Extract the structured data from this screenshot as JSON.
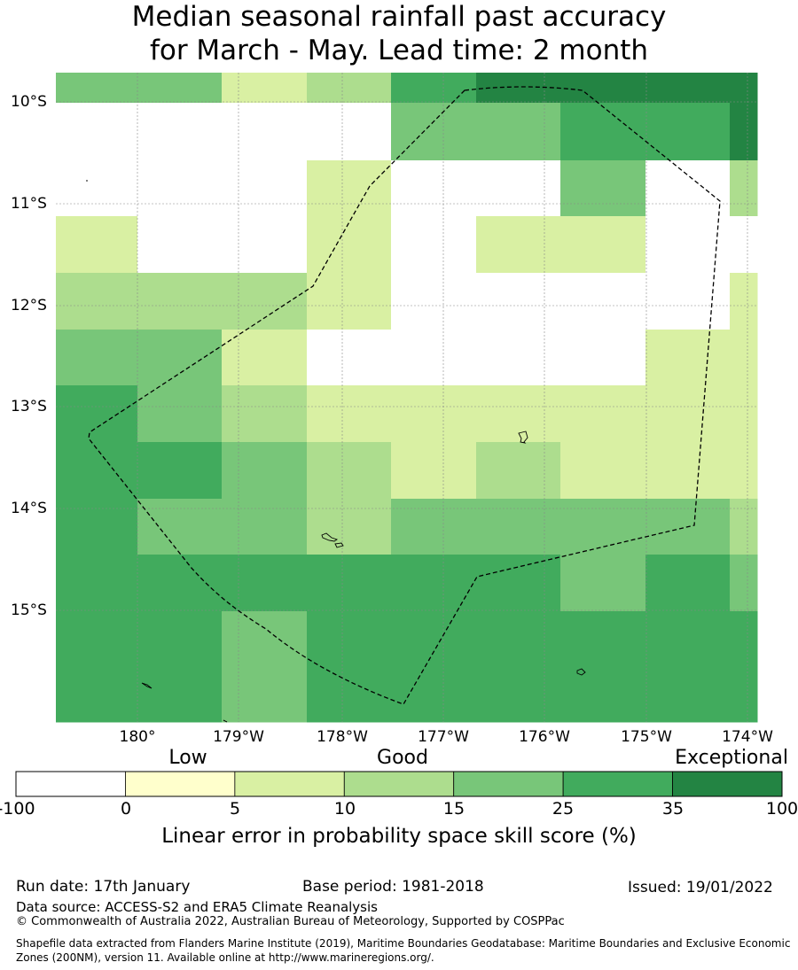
{
  "header": {
    "title_line1": "Median seasonal rainfall past accuracy",
    "title_line2": "for March - May. Lead time: 2 month"
  },
  "map": {
    "longitude_labels": [
      "180°",
      "179°W",
      "178°W",
      "177°W",
      "176°W",
      "175°W",
      "174°W"
    ],
    "latitude_labels": [
      "10°S",
      "11°S",
      "12°S",
      "13°S",
      "14°S",
      "15°S"
    ],
    "skill_grid_rows_north_to_south": [
      [
        15,
        15,
        5,
        10,
        25,
        35,
        35,
        35,
        50
      ],
      [
        -1,
        -1,
        -1,
        -1,
        15,
        15,
        25,
        25,
        35
      ],
      [
        -1,
        -1,
        -1,
        5,
        -1,
        -1,
        15,
        -1,
        10
      ],
      [
        5,
        -1,
        -1,
        5,
        -1,
        5,
        5,
        -1,
        -1
      ],
      [
        10,
        10,
        10,
        5,
        -1,
        -1,
        -1,
        -1,
        5
      ],
      [
        15,
        15,
        5,
        -1,
        -1,
        -1,
        -1,
        5,
        5
      ],
      [
        25,
        15,
        10,
        5,
        5,
        5,
        5,
        5,
        5
      ],
      [
        25,
        25,
        15,
        10,
        5,
        10,
        5,
        5,
        5
      ],
      [
        25,
        15,
        15,
        10,
        15,
        15,
        15,
        15,
        10
      ],
      [
        25,
        25,
        25,
        25,
        25,
        25,
        15,
        25,
        15
      ],
      [
        25,
        25,
        15,
        25,
        25,
        25,
        25,
        25,
        25
      ]
    ]
  },
  "legend": {
    "category_labels": [
      "Low",
      "Good",
      "Exceptional"
    ],
    "tick_labels": [
      "-100",
      "0",
      "5",
      "10",
      "15",
      "25",
      "35",
      "100"
    ],
    "colors": [
      "#ffffff",
      "#ffffcc",
      "#d9f0a3",
      "#addd8e",
      "#78c679",
      "#41ab5d",
      "#238443"
    ],
    "title": "Linear error in probability space skill score (%)"
  },
  "footer": {
    "run_date": "Run date: 17th January",
    "base_period": "Base period: 1981-2018",
    "issued": "Issued: 19/01/2022",
    "data_source": "Data source: ACCESS-S2 and ERA5 Climate Reanalysis",
    "copyright": "© Commonwealth of Australia 2022, Australian Bureau of Meteorology, Supported by COSPPac",
    "shapefile_line1": "Shapefile data extracted from Flanders Marine Institute (2019), Maritime Boundaries Geodatabase: Maritime Boundaries and Exclusive Economic",
    "shapefile_line2": "Zones (200NM), version 11. Available online at http://www.marineregions.org/."
  }
}
